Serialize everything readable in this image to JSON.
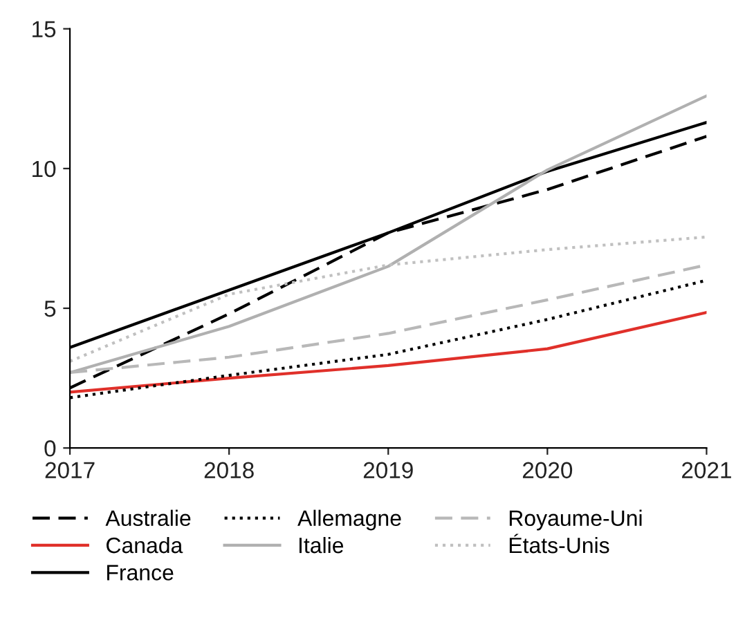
{
  "chart_data": {
    "type": "line",
    "x": [
      2017,
      2018,
      2019,
      2020,
      2021
    ],
    "xlim": [
      2017,
      2021
    ],
    "xticks": [
      2017,
      2018,
      2019,
      2020,
      2021
    ],
    "ylim": [
      0,
      15
    ],
    "yticks": [
      0,
      5,
      10,
      15
    ],
    "grid": false,
    "legend": "bottom",
    "series": [
      {
        "name": "Australie",
        "color": "#000000",
        "line_style": "dashed",
        "values": [
          2.15,
          4.8,
          7.7,
          9.25,
          11.15
        ]
      },
      {
        "name": "Canada",
        "color": "#e0302a",
        "line_style": "solid",
        "values": [
          2.0,
          2.5,
          2.95,
          3.55,
          4.85
        ]
      },
      {
        "name": "France",
        "color": "#000000",
        "line_style": "solid",
        "values": [
          3.6,
          5.65,
          7.7,
          9.9,
          11.65
        ]
      },
      {
        "name": "Allemagne",
        "color": "#000000",
        "line_style": "dotted",
        "values": [
          1.8,
          2.6,
          3.35,
          4.6,
          6.0
        ]
      },
      {
        "name": "Italie",
        "color": "#b0b0b0",
        "line_style": "solid",
        "values": [
          2.7,
          4.35,
          6.5,
          9.95,
          12.6
        ]
      },
      {
        "name": "Royaume-Uni",
        "color": "#b8b8b8",
        "line_style": "dashed",
        "values": [
          2.7,
          3.25,
          4.1,
          5.3,
          6.55
        ]
      },
      {
        "name": "États-Unis",
        "color": "#c0c0c0",
        "line_style": "dotted",
        "values": [
          3.1,
          5.5,
          6.55,
          7.1,
          7.55
        ]
      }
    ]
  }
}
